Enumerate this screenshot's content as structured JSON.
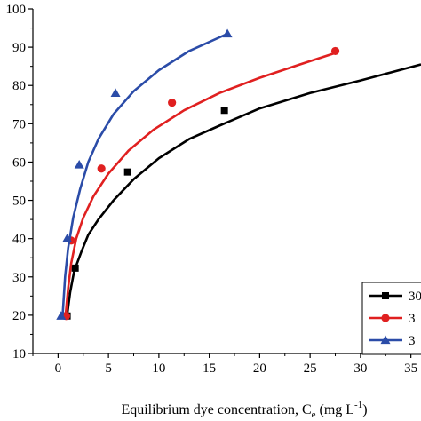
{
  "chart_data": {
    "type": "scatter",
    "xlabel_main": "Equilibrium dye concentration, C",
    "xlabel_sub": "e",
    "xlabel_unit_open": " (mg L",
    "xlabel_sup": "-1",
    "xlabel_unit_close": ")",
    "ylabel": "",
    "xlim": [
      -2.5,
      36
    ],
    "ylim": [
      10,
      100
    ],
    "x_ticks": [
      0,
      5,
      10,
      15,
      20,
      25,
      30,
      35
    ],
    "y_ticks": [
      10,
      20,
      30,
      40,
      50,
      60,
      70,
      80,
      90,
      100
    ],
    "grid": false,
    "legend_position": "bottom-right",
    "series": [
      {
        "name": "30",
        "color": "#000000",
        "marker": "square",
        "points": [
          {
            "x": 0.9,
            "y": 19.8
          },
          {
            "x": 1.7,
            "y": 32.3
          },
          {
            "x": 6.9,
            "y": 57.4
          },
          {
            "x": 16.5,
            "y": 73.5
          }
        ],
        "fit_curve": [
          [
            0.9,
            20.0
          ],
          [
            1.2,
            26.0
          ],
          [
            1.6,
            31.5
          ],
          [
            2.3,
            36.5
          ],
          [
            3.0,
            41.0
          ],
          [
            4.0,
            45.0
          ],
          [
            5.5,
            50.0
          ],
          [
            7.5,
            55.5
          ],
          [
            10.0,
            61.0
          ],
          [
            13.0,
            66.0
          ],
          [
            16.0,
            69.5
          ],
          [
            20.0,
            74.0
          ],
          [
            25.0,
            78.0
          ],
          [
            30.0,
            81.3
          ],
          [
            36.0,
            85.5
          ]
        ]
      },
      {
        "name": "3",
        "color": "#e02020",
        "marker": "circle",
        "points": [
          {
            "x": 0.8,
            "y": 19.8
          },
          {
            "x": 1.3,
            "y": 39.5
          },
          {
            "x": 4.3,
            "y": 58.3
          },
          {
            "x": 11.3,
            "y": 75.5
          },
          {
            "x": 27.5,
            "y": 89.0
          }
        ],
        "fit_curve": [
          [
            0.75,
            20.0
          ],
          [
            1.0,
            27.0
          ],
          [
            1.3,
            33.5
          ],
          [
            1.8,
            40.0
          ],
          [
            2.5,
            45.5
          ],
          [
            3.5,
            51.0
          ],
          [
            5.0,
            57.0
          ],
          [
            7.0,
            63.0
          ],
          [
            9.5,
            68.5
          ],
          [
            12.5,
            73.5
          ],
          [
            16.0,
            78.0
          ],
          [
            20.0,
            82.0
          ],
          [
            24.0,
            85.5
          ],
          [
            27.5,
            88.5
          ]
        ]
      },
      {
        "name": "3",
        "color": "#2b4ca8",
        "marker": "triangle",
        "points": [
          {
            "x": 0.3,
            "y": 19.8
          },
          {
            "x": 0.9,
            "y": 40.0
          },
          {
            "x": 2.1,
            "y": 59.3
          },
          {
            "x": 5.7,
            "y": 78.0
          },
          {
            "x": 16.8,
            "y": 93.5
          }
        ],
        "fit_curve": [
          [
            0.45,
            20.0
          ],
          [
            0.7,
            30.0
          ],
          [
            1.0,
            37.5
          ],
          [
            1.5,
            45.5
          ],
          [
            2.2,
            53.0
          ],
          [
            3.0,
            60.0
          ],
          [
            4.0,
            66.0
          ],
          [
            5.5,
            72.5
          ],
          [
            7.5,
            78.5
          ],
          [
            10.0,
            84.0
          ],
          [
            13.0,
            89.0
          ],
          [
            16.8,
            93.5
          ]
        ]
      }
    ]
  }
}
